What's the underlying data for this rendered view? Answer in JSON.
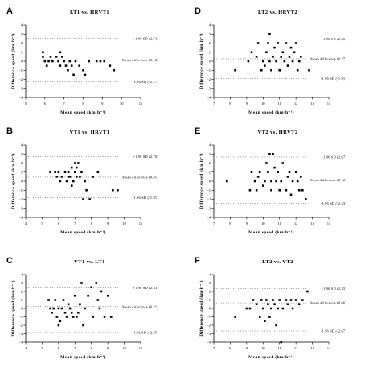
{
  "chart_data": [
    {
      "panel": "A",
      "title": "LT1 vs. HRVT1",
      "type": "scatter",
      "xlabel": "Mean speed  (km·h⁻¹)",
      "ylabel": "Difference speed  (km·h⁻¹)",
      "xlim": [
        5,
        11
      ],
      "ylim": [
        -4,
        4
      ],
      "xticks": [
        5,
        6,
        7,
        8,
        9,
        10,
        11
      ],
      "yticks": [
        -4,
        -3,
        -2,
        -1,
        0,
        1,
        2,
        3,
        4
      ],
      "reference_lines": [
        {
          "label": "+1.96 SD (2.51)",
          "value": 2.51
        },
        {
          "label": "Mean difference (0.12)",
          "value": 0.12
        },
        {
          "label": "-1.96 SD (-2.27)",
          "value": -2.27
        }
      ],
      "points": [
        [
          5.9,
          1.0
        ],
        [
          5.9,
          0.5
        ],
        [
          6.0,
          0.0
        ],
        [
          6.1,
          -0.5
        ],
        [
          6.2,
          0.0
        ],
        [
          6.3,
          0.5
        ],
        [
          6.4,
          0.0
        ],
        [
          6.6,
          0.5
        ],
        [
          6.7,
          0.0
        ],
        [
          6.8,
          1.0
        ],
        [
          6.8,
          -0.5
        ],
        [
          6.9,
          0.5
        ],
        [
          7.0,
          0.0
        ],
        [
          7.1,
          -0.5
        ],
        [
          7.2,
          -1.0
        ],
        [
          7.3,
          0.0
        ],
        [
          7.4,
          -0.5
        ],
        [
          7.5,
          -1.5
        ],
        [
          7.6,
          0.0
        ],
        [
          7.8,
          -0.5
        ],
        [
          8.0,
          -1.0
        ],
        [
          8.1,
          -1.5
        ],
        [
          8.3,
          0.0
        ],
        [
          8.7,
          0.0
        ],
        [
          8.9,
          0.0
        ],
        [
          9.1,
          0.0
        ],
        [
          9.4,
          -0.5
        ],
        [
          9.6,
          -1.0
        ]
      ]
    },
    {
      "panel": "B",
      "title": "VT1 vs. HRVT1",
      "type": "scatter",
      "xlabel": "Mean speed  (km·h⁻¹)",
      "ylabel": "Difference speed  (km·h⁻¹)",
      "xlim": [
        4,
        11
      ],
      "ylim": [
        -4,
        4
      ],
      "xticks": [
        4,
        5,
        6,
        7,
        8,
        9,
        10,
        11
      ],
      "yticks": [
        -4,
        -3,
        -2,
        -1,
        0,
        1,
        2,
        3,
        4
      ],
      "reference_lines": [
        {
          "label": "+1.96 SD (2.70)",
          "value": 2.7
        },
        {
          "label": "Mean difference (0.45)",
          "value": 0.45
        },
        {
          "label": "-1.96 SD (-1.81)",
          "value": -1.81
        }
      ],
      "points": [
        [
          5.5,
          1.0
        ],
        [
          5.8,
          1.0
        ],
        [
          5.9,
          0.5
        ],
        [
          6.0,
          1.0
        ],
        [
          6.1,
          0.0
        ],
        [
          6.2,
          0.5
        ],
        [
          6.4,
          1.0
        ],
        [
          6.5,
          0.0
        ],
        [
          6.6,
          0.5
        ],
        [
          6.6,
          1.0
        ],
        [
          6.7,
          0.5
        ],
        [
          6.8,
          1.5
        ],
        [
          6.8,
          -0.5
        ],
        [
          6.9,
          0.0
        ],
        [
          7.0,
          1.0
        ],
        [
          7.0,
          2.0
        ],
        [
          7.1,
          0.5
        ],
        [
          7.1,
          1.5
        ],
        [
          7.2,
          2.0
        ],
        [
          7.3,
          0.5
        ],
        [
          7.4,
          1.0
        ],
        [
          7.5,
          -2.0
        ],
        [
          7.6,
          0.0
        ],
        [
          7.7,
          -1.0
        ],
        [
          7.9,
          -2.0
        ],
        [
          8.1,
          0.5
        ],
        [
          8.4,
          1.0
        ],
        [
          9.3,
          -1.0
        ],
        [
          9.6,
          -1.0
        ]
      ]
    },
    {
      "panel": "C",
      "title": "VT1 vs. LT1",
      "type": "scatter",
      "xlabel": "Mean speed  (km·h⁻¹)",
      "ylabel": "Difference speed  (km·h⁻¹)",
      "xlim": [
        4,
        11
      ],
      "ylim": [
        -4,
        4
      ],
      "xticks": [
        4,
        5,
        6,
        7,
        8,
        9,
        10,
        11
      ],
      "yticks": [
        -4,
        -3,
        -2,
        -1,
        0,
        1,
        2,
        3,
        4
      ],
      "reference_lines": [
        {
          "label": "+1.96 SD (2.43)",
          "value": 2.43
        },
        {
          "label": "Mean difference (0.21)",
          "value": 0.21
        },
        {
          "label": "-1.96 SD (-2.85)",
          "value": -2.85
        }
      ],
      "points": [
        [
          5.4,
          1.0
        ],
        [
          5.5,
          0.0
        ],
        [
          5.6,
          -0.5
        ],
        [
          5.7,
          0.0
        ],
        [
          5.8,
          1.0
        ],
        [
          5.9,
          -1.0
        ],
        [
          6.0,
          -2.0
        ],
        [
          6.0,
          0.0
        ],
        [
          6.1,
          -1.5
        ],
        [
          6.2,
          0.0
        ],
        [
          6.3,
          1.0
        ],
        [
          6.4,
          -0.5
        ],
        [
          6.5,
          -1.0
        ],
        [
          6.6,
          0.5
        ],
        [
          6.7,
          0.0
        ],
        [
          6.8,
          -0.5
        ],
        [
          6.9,
          -1.0
        ],
        [
          7.0,
          1.5
        ],
        [
          7.1,
          -1.0
        ],
        [
          7.2,
          -0.5
        ],
        [
          7.3,
          0.5
        ],
        [
          7.4,
          3.0
        ],
        [
          7.5,
          -2.0
        ],
        [
          7.6,
          0.0
        ],
        [
          7.8,
          1.5
        ],
        [
          8.0,
          2.5
        ],
        [
          8.1,
          -1.0
        ],
        [
          8.3,
          3.0
        ],
        [
          8.4,
          1.0
        ],
        [
          8.5,
          0.0
        ],
        [
          8.6,
          2.0
        ],
        [
          8.8,
          -1.0
        ],
        [
          9.0,
          1.5
        ],
        [
          9.2,
          -1.0
        ]
      ]
    },
    {
      "panel": "D",
      "title": "LT2 vs. HRVT2",
      "type": "scatter",
      "xlabel": "Mean speed  (km·h⁻¹)",
      "ylabel": "Difference speed  (km·h⁻¹)",
      "xlim": [
        7,
        14
      ],
      "ylim": [
        -4,
        4
      ],
      "xticks": [
        7,
        8,
        9,
        10,
        11,
        12,
        13,
        14
      ],
      "yticks": [
        -4,
        -3,
        -2,
        -1,
        0,
        1,
        2,
        3,
        4
      ],
      "reference_lines": [
        {
          "label": "+1.96 SD (2.46)",
          "value": 2.46
        },
        {
          "label": "Mean difference (0.27)",
          "value": 0.27
        },
        {
          "label": "-1.96 SD (-1.91)",
          "value": -1.91
        }
      ],
      "points": [
        [
          8.3,
          -1.0
        ],
        [
          9.1,
          0.0
        ],
        [
          9.3,
          1.0
        ],
        [
          9.6,
          0.5
        ],
        [
          9.7,
          2.0
        ],
        [
          9.9,
          -1.0
        ],
        [
          10.0,
          0.0
        ],
        [
          10.1,
          -0.5
        ],
        [
          10.2,
          1.0
        ],
        [
          10.3,
          2.0
        ],
        [
          10.4,
          0.0
        ],
        [
          10.4,
          3.0
        ],
        [
          10.5,
          -1.0
        ],
        [
          10.6,
          0.5
        ],
        [
          10.7,
          1.5
        ],
        [
          10.8,
          0.0
        ],
        [
          10.9,
          2.0
        ],
        [
          11.0,
          -1.0
        ],
        [
          11.1,
          0.5
        ],
        [
          11.2,
          1.0
        ],
        [
          11.3,
          0.0
        ],
        [
          11.4,
          2.0
        ],
        [
          11.5,
          -0.5
        ],
        [
          11.6,
          0.5
        ],
        [
          11.7,
          1.5
        ],
        [
          11.8,
          0.0
        ],
        [
          11.9,
          1.0
        ],
        [
          12.0,
          2.0
        ],
        [
          12.1,
          -1.0
        ],
        [
          12.2,
          0.0
        ],
        [
          12.3,
          0.5
        ],
        [
          12.8,
          -1.0
        ]
      ]
    },
    {
      "panel": "E",
      "title": "VT2 vs. HRVT2",
      "type": "scatter",
      "xlabel": "Mean speed  (km·h⁻¹)",
      "ylabel": "Difference speed  (km·h⁻¹)",
      "xlim": [
        7,
        14
      ],
      "ylim": [
        -4,
        4
      ],
      "xticks": [
        7,
        8,
        9,
        10,
        11,
        12,
        13,
        14
      ],
      "yticks": [
        -4,
        -3,
        -2,
        -1,
        0,
        1,
        2,
        3,
        4
      ],
      "reference_lines": [
        {
          "label": "+1.96 SD (2.67)",
          "value": 2.67
        },
        {
          "label": "Mean difference (0.12)",
          "value": 0.12
        },
        {
          "label": "-1.96 SD (-2.43)",
          "value": -2.43
        }
      ],
      "points": [
        [
          7.8,
          0.0
        ],
        [
          9.2,
          -1.0
        ],
        [
          9.3,
          1.0
        ],
        [
          9.5,
          0.0
        ],
        [
          9.6,
          -1.0
        ],
        [
          9.7,
          0.5
        ],
        [
          9.8,
          1.0
        ],
        [
          10.0,
          -0.5
        ],
        [
          10.1,
          0.0
        ],
        [
          10.2,
          2.0
        ],
        [
          10.3,
          1.0
        ],
        [
          10.4,
          3.0
        ],
        [
          10.5,
          -1.0
        ],
        [
          10.5,
          0.0
        ],
        [
          10.6,
          3.0
        ],
        [
          10.7,
          1.5
        ],
        [
          10.8,
          0.0
        ],
        [
          10.9,
          1.0
        ],
        [
          11.0,
          -1.0
        ],
        [
          11.1,
          0.0
        ],
        [
          11.2,
          2.0
        ],
        [
          11.4,
          -1.0
        ],
        [
          11.5,
          0.5
        ],
        [
          11.6,
          1.0
        ],
        [
          11.7,
          -1.5
        ],
        [
          11.8,
          0.0
        ],
        [
          12.0,
          1.0
        ],
        [
          12.1,
          0.0
        ],
        [
          12.2,
          -1.0
        ],
        [
          12.3,
          0.5
        ],
        [
          12.4,
          -1.0
        ],
        [
          12.6,
          -2.0
        ]
      ]
    },
    {
      "panel": "F",
      "title": "LT2 vs. VT2",
      "type": "scatter",
      "xlabel": "Mean speed  (km·h⁻¹)",
      "ylabel": "Difference speed  (km·h⁻¹)",
      "xlim": [
        7,
        14
      ],
      "ylim": [
        -4,
        4
      ],
      "xticks": [
        7,
        8,
        9,
        10,
        11,
        12,
        13,
        14
      ],
      "yticks": [
        -4,
        -3,
        -2,
        -1,
        0,
        1,
        2,
        3,
        4
      ],
      "reference_lines": [
        {
          "label": "+1.96 SD (2.35)",
          "value": 2.35
        },
        {
          "label": "Mean difference (0.66)",
          "value": 0.66
        },
        {
          "label": "-1.96 SD (-2.67)",
          "value": -2.67
        }
      ],
      "points": [
        [
          8.3,
          -1.0
        ],
        [
          9.0,
          0.0
        ],
        [
          9.2,
          0.0
        ],
        [
          9.4,
          1.0
        ],
        [
          9.6,
          0.5
        ],
        [
          9.8,
          -1.0
        ],
        [
          9.9,
          1.0
        ],
        [
          10.0,
          0.0
        ],
        [
          10.1,
          -1.5
        ],
        [
          10.2,
          1.0
        ],
        [
          10.3,
          0.5
        ],
        [
          10.4,
          -1.0
        ],
        [
          10.5,
          0.0
        ],
        [
          10.6,
          1.0
        ],
        [
          10.7,
          0.5
        ],
        [
          10.8,
          -2.0
        ],
        [
          10.9,
          0.0
        ],
        [
          11.0,
          1.0
        ],
        [
          11.1,
          -4.0
        ],
        [
          11.2,
          0.0
        ],
        [
          11.4,
          1.0
        ],
        [
          11.5,
          0.5
        ],
        [
          11.7,
          1.0
        ],
        [
          11.8,
          0.0
        ],
        [
          12.0,
          1.0
        ],
        [
          12.2,
          0.5
        ],
        [
          12.4,
          1.0
        ],
        [
          12.7,
          2.0
        ]
      ]
    }
  ]
}
